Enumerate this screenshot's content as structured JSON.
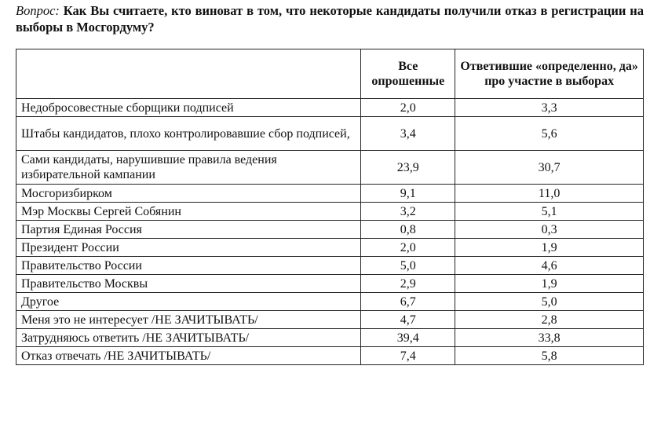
{
  "question": {
    "label": "Вопрос:",
    "text": "Как Вы считаете, кто виноват в том, что некоторые кандидаты получили отказ в регистрации на выборы в Мосгордуму?"
  },
  "table": {
    "headers": [
      "",
      "Все опрошенные",
      "Ответившие «определенно, да» про участие в выборах"
    ],
    "rows": [
      {
        "label": "Недобросовестные сборщики подписей",
        "all": "2,0",
        "voters": "3,3"
      },
      {
        "label": "Штабы кандидатов, плохо контролировавшие сбор подписей,",
        "all": "3,4",
        "voters": "5,6"
      },
      {
        "label": "Сами кандидаты, нарушившие правила ведения избирательной кампании",
        "all": "23,9",
        "voters": "30,7"
      },
      {
        "label": "Мосгоризбирком",
        "all": "9,1",
        "voters": "11,0"
      },
      {
        "label": "Мэр Москвы Сергей Собянин",
        "all": "3,2",
        "voters": "5,1"
      },
      {
        "label": "Партия Единая Россия",
        "all": "0,8",
        "voters": "0,3"
      },
      {
        "label": "Президент России",
        "all": "2,0",
        "voters": "1,9"
      },
      {
        "label": "Правительство России",
        "all": "5,0",
        "voters": "4,6"
      },
      {
        "label": "Правительство Москвы",
        "all": "2,9",
        "voters": "1,9"
      },
      {
        "label": "Другое",
        "all": "6,7",
        "voters": "5,0"
      },
      {
        "label": "Меня это не интересует /НЕ ЗАЧИТЫВАТЬ/",
        "all": "4,7",
        "voters": "2,8"
      },
      {
        "label": "Затрудняюсь ответить /НЕ ЗАЧИТЫВАТЬ/",
        "all": "39,4",
        "voters": "33,8"
      },
      {
        "label": "Отказ отвечать /НЕ ЗАЧИТЫВАТЬ/",
        "all": "7,4",
        "voters": "5,8"
      }
    ]
  }
}
